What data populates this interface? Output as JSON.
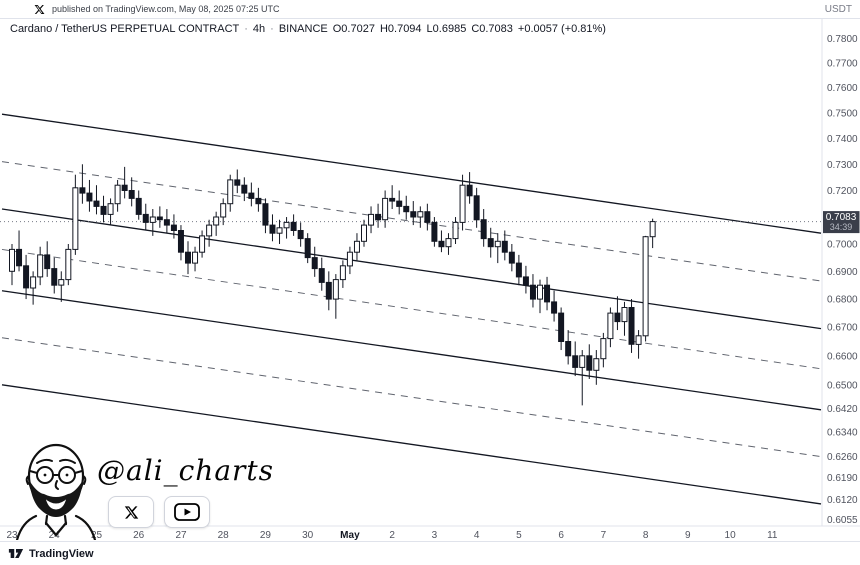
{
  "published_bar": {
    "text": "published on TradingView.com, May 08, 2025 07:25 UTC"
  },
  "price_axis_currency": "USDT",
  "legend": {
    "symbol": "Cardano / TetherUS PERPETUAL CONTRACT",
    "separator": "·",
    "interval": "4h",
    "exchange": "BINANCE",
    "open": "O0.7027",
    "high": "H0.7094",
    "low": "L0.6985",
    "close": "C0.7083",
    "change": "+0.0057 (+0.81%)"
  },
  "watermark": {
    "handle": "@ali_charts"
  },
  "attribution": {
    "brand": "TradingView"
  },
  "chart_data": {
    "type": "candlestick",
    "title": "Cardano / TetherUS PERPETUAL CONTRACT, 4h, BINANCE",
    "scale": "logarithmic",
    "interval_hours": 4,
    "price_ticks": [
      "0.7800",
      "0.7700",
      "0.7600",
      "0.7500",
      "0.7400",
      "0.7300",
      "0.7200",
      "0.7100",
      "0.7000",
      "0.6900",
      "0.6800",
      "0.6700",
      "0.6600",
      "0.6500",
      "0.6420",
      "0.6340",
      "0.6260",
      "0.6190",
      "0.6120",
      "0.6055"
    ],
    "time_ticks": [
      {
        "label": "23",
        "candle": 0
      },
      {
        "label": "24",
        "candle": 6
      },
      {
        "label": "25",
        "candle": 12
      },
      {
        "label": "26",
        "candle": 18
      },
      {
        "label": "27",
        "candle": 24
      },
      {
        "label": "28",
        "candle": 30
      },
      {
        "label": "29",
        "candle": 36
      },
      {
        "label": "30",
        "candle": 42
      },
      {
        "label": "May",
        "candle": 48
      },
      {
        "label": "2",
        "candle": 54
      },
      {
        "label": "3",
        "candle": 60
      },
      {
        "label": "4",
        "candle": 66
      },
      {
        "label": "5",
        "candle": 72
      },
      {
        "label": "6",
        "candle": 78
      },
      {
        "label": "7",
        "candle": 84
      },
      {
        "label": "8",
        "candle": 90
      },
      {
        "label": "9",
        "candle": 96
      },
      {
        "label": "10",
        "candle": 102
      },
      {
        "label": "11",
        "candle": 108
      }
    ],
    "candles": [
      [
        0.69,
        0.7,
        0.685,
        0.698
      ],
      [
        0.698,
        0.705,
        0.69,
        0.692
      ],
      [
        0.692,
        0.696,
        0.68,
        0.684
      ],
      [
        0.684,
        0.69,
        0.678,
        0.688
      ],
      [
        0.688,
        0.699,
        0.685,
        0.696
      ],
      [
        0.696,
        0.701,
        0.688,
        0.691
      ],
      [
        0.691,
        0.695,
        0.682,
        0.685
      ],
      [
        0.685,
        0.69,
        0.679,
        0.687
      ],
      [
        0.687,
        0.7,
        0.685,
        0.698
      ],
      [
        0.698,
        0.726,
        0.696,
        0.721
      ],
      [
        0.721,
        0.73,
        0.715,
        0.719
      ],
      [
        0.719,
        0.724,
        0.712,
        0.716
      ],
      [
        0.716,
        0.722,
        0.711,
        0.714
      ],
      [
        0.714,
        0.718,
        0.708,
        0.711
      ],
      [
        0.711,
        0.717,
        0.707,
        0.715
      ],
      [
        0.715,
        0.724,
        0.712,
        0.722
      ],
      [
        0.722,
        0.729,
        0.717,
        0.72
      ],
      [
        0.72,
        0.725,
        0.714,
        0.717
      ],
      [
        0.717,
        0.72,
        0.709,
        0.711
      ],
      [
        0.711,
        0.715,
        0.705,
        0.708
      ],
      [
        0.708,
        0.713,
        0.703,
        0.71
      ],
      [
        0.71,
        0.714,
        0.706,
        0.709
      ],
      [
        0.709,
        0.713,
        0.704,
        0.707
      ],
      [
        0.707,
        0.711,
        0.702,
        0.705
      ],
      [
        0.705,
        0.707,
        0.694,
        0.697
      ],
      [
        0.697,
        0.701,
        0.689,
        0.693
      ],
      [
        0.693,
        0.699,
        0.69,
        0.697
      ],
      [
        0.697,
        0.705,
        0.695,
        0.703
      ],
      [
        0.703,
        0.709,
        0.699,
        0.707
      ],
      [
        0.707,
        0.712,
        0.703,
        0.71
      ],
      [
        0.71,
        0.717,
        0.707,
        0.715
      ],
      [
        0.715,
        0.726,
        0.712,
        0.724
      ],
      [
        0.724,
        0.728,
        0.719,
        0.722
      ],
      [
        0.722,
        0.725,
        0.716,
        0.719
      ],
      [
        0.719,
        0.723,
        0.714,
        0.717
      ],
      [
        0.717,
        0.721,
        0.712,
        0.715
      ],
      [
        0.715,
        0.717,
        0.704,
        0.707
      ],
      [
        0.707,
        0.711,
        0.701,
        0.704
      ],
      [
        0.704,
        0.709,
        0.7,
        0.706
      ],
      [
        0.706,
        0.71,
        0.702,
        0.708
      ],
      [
        0.708,
        0.711,
        0.703,
        0.705
      ],
      [
        0.705,
        0.708,
        0.699,
        0.702
      ],
      [
        0.702,
        0.704,
        0.693,
        0.695
      ],
      [
        0.695,
        0.699,
        0.688,
        0.691
      ],
      [
        0.691,
        0.695,
        0.683,
        0.686
      ],
      [
        0.686,
        0.69,
        0.676,
        0.68
      ],
      [
        0.68,
        0.689,
        0.673,
        0.687
      ],
      [
        0.687,
        0.694,
        0.684,
        0.692
      ],
      [
        0.692,
        0.699,
        0.689,
        0.697
      ],
      [
        0.697,
        0.704,
        0.694,
        0.701
      ],
      [
        0.701,
        0.709,
        0.699,
        0.707
      ],
      [
        0.707,
        0.714,
        0.704,
        0.711
      ],
      [
        0.711,
        0.715,
        0.706,
        0.709
      ],
      [
        0.709,
        0.72,
        0.706,
        0.717
      ],
      [
        0.717,
        0.722,
        0.713,
        0.716
      ],
      [
        0.716,
        0.72,
        0.711,
        0.714
      ],
      [
        0.714,
        0.718,
        0.709,
        0.712
      ],
      [
        0.712,
        0.716,
        0.707,
        0.71
      ],
      [
        0.71,
        0.714,
        0.706,
        0.712
      ],
      [
        0.712,
        0.715,
        0.705,
        0.708
      ],
      [
        0.708,
        0.71,
        0.699,
        0.701
      ],
      [
        0.701,
        0.705,
        0.697,
        0.699
      ],
      [
        0.699,
        0.704,
        0.696,
        0.702
      ],
      [
        0.702,
        0.71,
        0.7,
        0.708
      ],
      [
        0.708,
        0.726,
        0.705,
        0.722
      ],
      [
        0.722,
        0.727,
        0.715,
        0.718
      ],
      [
        0.718,
        0.721,
        0.706,
        0.709
      ],
      [
        0.709,
        0.713,
        0.699,
        0.702
      ],
      [
        0.702,
        0.706,
        0.695,
        0.699
      ],
      [
        0.699,
        0.704,
        0.693,
        0.701
      ],
      [
        0.701,
        0.705,
        0.694,
        0.697
      ],
      [
        0.697,
        0.7,
        0.69,
        0.693
      ],
      [
        0.693,
        0.696,
        0.685,
        0.688
      ],
      [
        0.688,
        0.692,
        0.682,
        0.685
      ],
      [
        0.685,
        0.689,
        0.677,
        0.68
      ],
      [
        0.68,
        0.687,
        0.675,
        0.685
      ],
      [
        0.685,
        0.688,
        0.676,
        0.679
      ],
      [
        0.679,
        0.683,
        0.672,
        0.675
      ],
      [
        0.675,
        0.677,
        0.662,
        0.665
      ],
      [
        0.665,
        0.669,
        0.657,
        0.66
      ],
      [
        0.66,
        0.665,
        0.653,
        0.656
      ],
      [
        0.656,
        0.662,
        0.643,
        0.66
      ],
      [
        0.66,
        0.664,
        0.652,
        0.655
      ],
      [
        0.655,
        0.662,
        0.65,
        0.659
      ],
      [
        0.659,
        0.668,
        0.656,
        0.666
      ],
      [
        0.666,
        0.677,
        0.663,
        0.675
      ],
      [
        0.675,
        0.681,
        0.669,
        0.672
      ],
      [
        0.672,
        0.679,
        0.667,
        0.677
      ],
      [
        0.677,
        0.68,
        0.661,
        0.664
      ],
      [
        0.664,
        0.669,
        0.659,
        0.667
      ],
      [
        0.667,
        0.703,
        0.665,
        0.7027
      ],
      [
        0.7027,
        0.7094,
        0.6985,
        0.7083
      ]
    ],
    "channel": {
      "solid": [
        [
          0.7495,
          0.704
        ],
        [
          0.713,
          0.6695
        ],
        [
          0.683,
          0.6415
        ],
        [
          0.65,
          0.6105
        ]
      ],
      "dashed": [
        [
          0.731,
          0.6865
        ],
        [
          0.698,
          0.6555
        ],
        [
          0.6663,
          0.6259
        ]
      ]
    },
    "price_line": 0.7083,
    "price_label": "0.7083",
    "countdown": "34:39",
    "last_candle": {
      "open": 0.7027,
      "high": 0.7094,
      "low": 0.6985,
      "close": 0.7083,
      "change": "+0.0057 (+0.81%)"
    },
    "colors": {
      "up": "#ffffff",
      "down": "#131722",
      "outline": "#131722",
      "badge_bg": "#3a3e4a",
      "dashed_line": "#60646e"
    }
  }
}
